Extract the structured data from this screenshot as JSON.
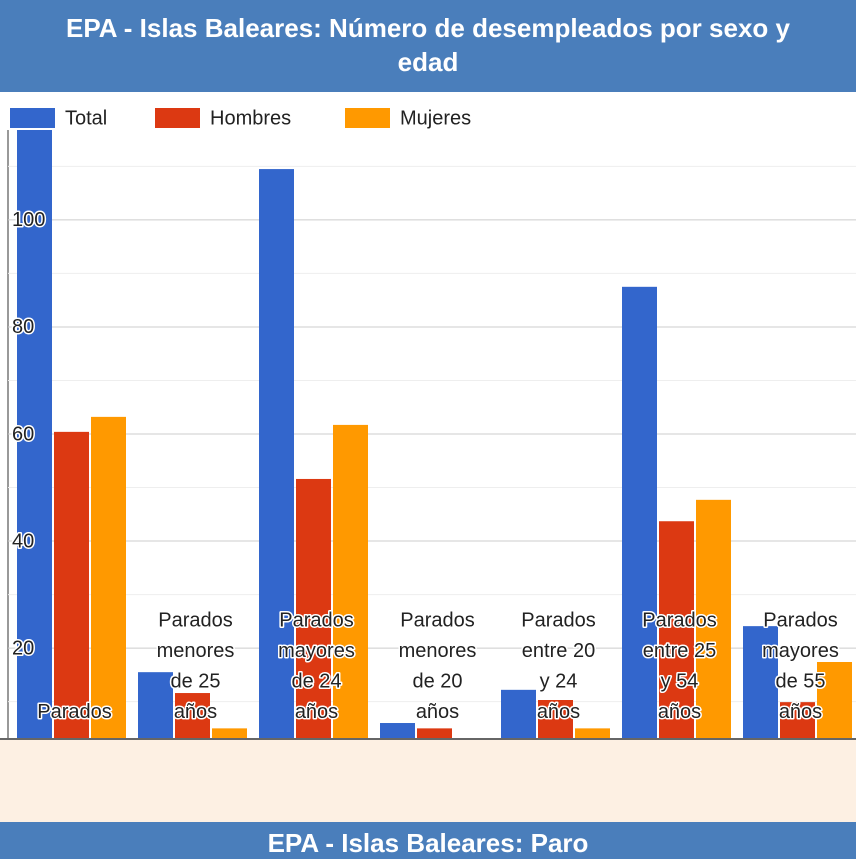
{
  "chart_data": {
    "type": "bar",
    "title": "EPA - Islas Baleares: Número de desempleados por sexo y edad",
    "categories": [
      "Parados",
      "Parados menores de 25 años",
      "Parados mayores de 24 años",
      "Parados menores de 20 años",
      "Parados entre 20 y 24 años",
      "Parados entre 25 y 54 años",
      "Parados mayores de 55 años"
    ],
    "series": [
      {
        "name": "Total",
        "color": "#3366cc",
        "values": [
          123.6,
          15.5,
          109.5,
          6,
          12.2,
          87.5,
          24.1
        ]
      },
      {
        "name": "Hombres",
        "color": "#dc3912",
        "values": [
          60.4,
          11.6,
          51.6,
          5,
          10.3,
          43.7,
          9.9
        ]
      },
      {
        "name": "Mujeres",
        "color": "#ff9900",
        "values": [
          63.2,
          5,
          61.7,
          1.5,
          5,
          47.7,
          17.4
        ]
      }
    ],
    "ylim": [
      3.2,
      116.8
    ],
    "yticks": [
      20,
      40,
      60,
      80,
      100
    ],
    "minor_yticks": [
      10,
      30,
      50,
      70,
      90,
      110
    ],
    "grid": true,
    "legend": "top"
  },
  "next_section_title": "EPA - Islas Baleares: Paro"
}
